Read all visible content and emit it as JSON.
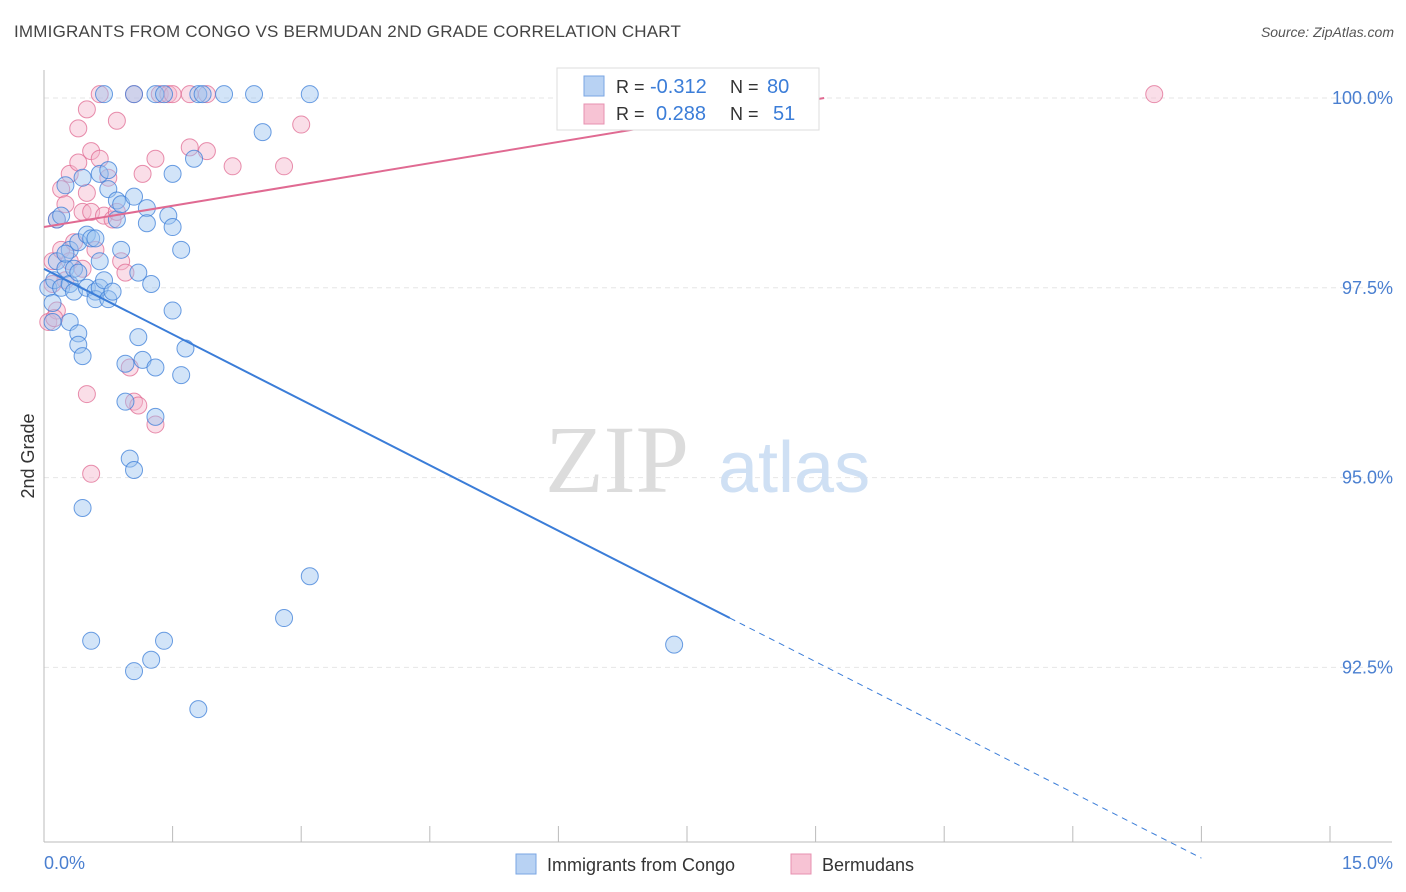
{
  "title": "IMMIGRANTS FROM CONGO VS BERMUDAN 2ND GRADE CORRELATION CHART",
  "source": "Source: ZipAtlas.com",
  "watermark": {
    "zip": "ZIP",
    "atlas": "atlas"
  },
  "chart_data": {
    "type": "scatter",
    "title": "IMMIGRANTS FROM CONGO VS BERMUDAN 2ND GRADE CORRELATION CHART",
    "xlabel": "",
    "ylabel": "2nd Grade",
    "xlim": [
      0,
      15
    ],
    "ylim": [
      90.2,
      100.25
    ],
    "x_tick_labels": [
      "0.0%",
      "15.0%"
    ],
    "y_ticks": [
      92.5,
      95.0,
      97.5,
      100.0
    ],
    "y_tick_labels": [
      "92.5%",
      "95.0%",
      "97.5%",
      "100.0%"
    ],
    "colors": {
      "blue": "#3b7dd8",
      "pink": "#e06a92",
      "blue_fill": "#9cc3ef",
      "pink_fill": "#f4b6cb",
      "axis_text": "#4a7fd0"
    },
    "stats": [
      {
        "r_label": "R =",
        "r": "-0.312",
        "n_label": "N =",
        "n": "80"
      },
      {
        "r_label": "R =",
        "r": "0.288",
        "n_label": "N =",
        "n": "51"
      }
    ],
    "series": [
      {
        "name": "Immigrants from Congo",
        "color": "#3b7dd8",
        "trend": {
          "x0": 0.0,
          "y0": 97.75,
          "x1": 8.0,
          "y1": 93.15,
          "dash_to_x": 13.5
        },
        "points": [
          [
            0.05,
            97.5
          ],
          [
            0.1,
            97.3
          ],
          [
            0.1,
            97.05
          ],
          [
            0.12,
            97.6
          ],
          [
            0.15,
            98.4
          ],
          [
            0.15,
            97.85
          ],
          [
            0.2,
            97.5
          ],
          [
            0.2,
            98.45
          ],
          [
            0.25,
            98.85
          ],
          [
            0.25,
            97.75
          ],
          [
            0.3,
            98.0
          ],
          [
            0.3,
            97.55
          ],
          [
            0.3,
            97.05
          ],
          [
            0.35,
            97.75
          ],
          [
            0.35,
            97.45
          ],
          [
            0.4,
            98.1
          ],
          [
            0.4,
            97.7
          ],
          [
            0.4,
            96.9
          ],
          [
            0.4,
            96.75
          ],
          [
            0.45,
            96.6
          ],
          [
            0.45,
            94.6
          ],
          [
            0.5,
            98.2
          ],
          [
            0.5,
            97.5
          ],
          [
            0.55,
            98.15
          ],
          [
            0.6,
            98.15
          ],
          [
            0.6,
            97.45
          ],
          [
            0.6,
            97.35
          ],
          [
            0.65,
            99.0
          ],
          [
            0.65,
            97.85
          ],
          [
            0.65,
            97.5
          ],
          [
            0.7,
            97.6
          ],
          [
            0.75,
            99.05
          ],
          [
            0.75,
            98.8
          ],
          [
            0.75,
            97.35
          ],
          [
            0.8,
            97.45
          ],
          [
            0.85,
            98.65
          ],
          [
            0.85,
            98.4
          ],
          [
            0.9,
            98.6
          ],
          [
            0.9,
            98.0
          ],
          [
            0.95,
            96.5
          ],
          [
            0.95,
            96.0
          ],
          [
            1.0,
            95.25
          ],
          [
            1.05,
            95.1
          ],
          [
            1.05,
            98.7
          ],
          [
            1.1,
            97.7
          ],
          [
            1.1,
            96.85
          ],
          [
            1.15,
            96.55
          ],
          [
            1.2,
            98.55
          ],
          [
            1.2,
            98.35
          ],
          [
            1.25,
            97.55
          ],
          [
            1.3,
            95.8
          ],
          [
            1.3,
            96.45
          ],
          [
            1.45,
            98.45
          ],
          [
            1.5,
            99.0
          ],
          [
            1.5,
            98.3
          ],
          [
            1.6,
            98.0
          ],
          [
            1.6,
            96.35
          ],
          [
            1.65,
            96.7
          ],
          [
            1.3,
            100.05
          ],
          [
            1.4,
            100.05
          ],
          [
            1.8,
            100.05
          ],
          [
            1.85,
            100.05
          ],
          [
            2.1,
            100.05
          ],
          [
            2.45,
            100.05
          ],
          [
            3.1,
            100.05
          ],
          [
            1.05,
            100.05
          ],
          [
            0.7,
            100.05
          ],
          [
            2.55,
            99.55
          ],
          [
            1.75,
            99.2
          ],
          [
            1.5,
            97.2
          ],
          [
            3.1,
            93.7
          ],
          [
            2.8,
            93.15
          ],
          [
            0.55,
            92.85
          ],
          [
            1.25,
            92.6
          ],
          [
            1.4,
            92.85
          ],
          [
            1.05,
            92.45
          ],
          [
            1.8,
            91.95
          ],
          [
            7.35,
            92.8
          ],
          [
            0.25,
            97.95
          ],
          [
            0.45,
            98.95
          ]
        ]
      },
      {
        "name": "Bermudans",
        "color": "#e06a92",
        "trend": {
          "x0": 0.0,
          "y0": 98.3,
          "x1": 9.1,
          "y1": 100.0
        },
        "points": [
          [
            0.05,
            97.05
          ],
          [
            0.1,
            97.55
          ],
          [
            0.1,
            97.85
          ],
          [
            0.15,
            98.4
          ],
          [
            0.15,
            97.2
          ],
          [
            0.2,
            98.8
          ],
          [
            0.2,
            98.0
          ],
          [
            0.25,
            98.6
          ],
          [
            0.25,
            97.6
          ],
          [
            0.3,
            99.0
          ],
          [
            0.3,
            97.85
          ],
          [
            0.35,
            98.1
          ],
          [
            0.4,
            99.15
          ],
          [
            0.45,
            98.5
          ],
          [
            0.45,
            97.75
          ],
          [
            0.5,
            98.75
          ],
          [
            0.55,
            99.3
          ],
          [
            0.55,
            98.5
          ],
          [
            0.6,
            98.0
          ],
          [
            0.65,
            99.2
          ],
          [
            0.7,
            98.45
          ],
          [
            0.75,
            98.95
          ],
          [
            0.8,
            98.4
          ],
          [
            0.85,
            98.5
          ],
          [
            0.9,
            97.85
          ],
          [
            0.95,
            97.7
          ],
          [
            1.0,
            96.45
          ],
          [
            1.05,
            96.0
          ],
          [
            0.5,
            96.1
          ],
          [
            0.55,
            95.05
          ],
          [
            1.1,
            95.95
          ],
          [
            1.3,
            95.7
          ],
          [
            0.4,
            99.6
          ],
          [
            0.5,
            99.85
          ],
          [
            0.85,
            99.7
          ],
          [
            1.15,
            99.0
          ],
          [
            1.3,
            99.2
          ],
          [
            1.35,
            100.05
          ],
          [
            1.45,
            100.05
          ],
          [
            1.5,
            100.05
          ],
          [
            1.7,
            100.05
          ],
          [
            1.9,
            100.05
          ],
          [
            1.7,
            99.35
          ],
          [
            1.9,
            99.3
          ],
          [
            2.2,
            99.1
          ],
          [
            2.8,
            99.1
          ],
          [
            3.0,
            99.65
          ],
          [
            0.65,
            100.05
          ],
          [
            1.05,
            100.05
          ],
          [
            12.95,
            100.05
          ],
          [
            0.12,
            97.1
          ]
        ]
      }
    ]
  }
}
